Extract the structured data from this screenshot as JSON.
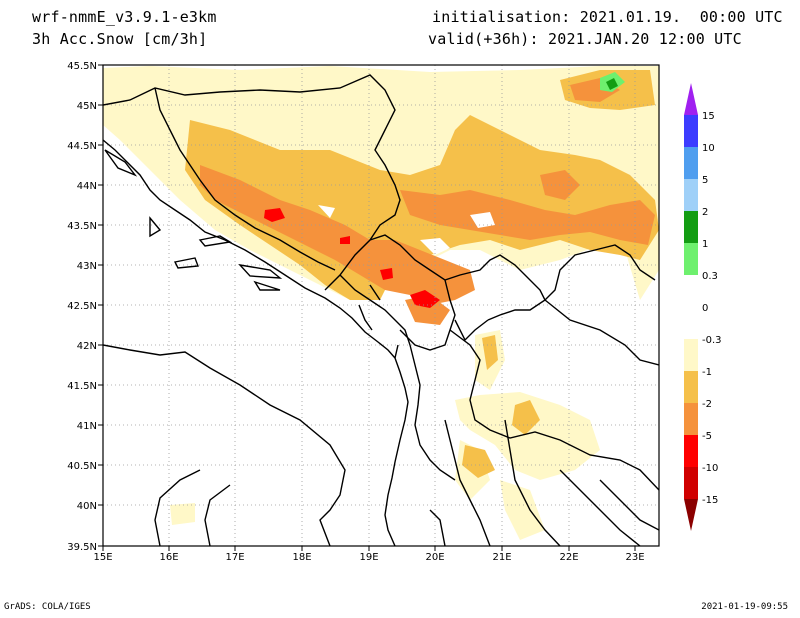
{
  "header": {
    "model": "wrf-nmmE_v3.9.1-e3km",
    "field": "3h Acc.Snow [cm/3h]",
    "init": "initialisation: 2021.01.19.  00:00 UTC",
    "valid": "valid(+36h): 2021.JAN.20 12:00 UTC"
  },
  "axes": {
    "lat_labels": [
      "45.5N",
      "45N",
      "44.5N",
      "44N",
      "43.5N",
      "43N",
      "42.5N",
      "42N",
      "41.5N",
      "41N",
      "40.5N",
      "40N",
      "39.5N"
    ],
    "lon_labels": [
      "15E",
      "16E",
      "17E",
      "18E",
      "19E",
      "20E",
      "21E",
      "22E",
      "23E"
    ]
  },
  "colorbar": {
    "labels": [
      "15",
      "10",
      "5",
      "2",
      "1",
      "0.3",
      "0",
      "-0.3",
      "-1",
      "-2",
      "-5",
      "-10",
      "-15"
    ],
    "colors": [
      "#a020f0",
      "#3c3cff",
      "#4f9eef",
      "#9fd0f8",
      "#139d13",
      "#6ef06e",
      "#ffffff",
      "#ffffff",
      "#fff8c8",
      "#f5c04a",
      "#f5923c",
      "#ff0000",
      "#d00000",
      "#8b0000"
    ]
  },
  "footer": {
    "left": "GrADS: COLA/IGES",
    "right": "2021-01-19-09:55"
  }
}
